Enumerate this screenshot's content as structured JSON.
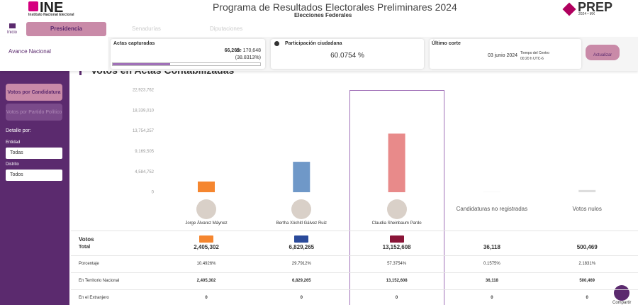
{
  "header": {
    "logo": "INE",
    "logo_sub": "Instituto Nacional Electoral",
    "title": "Programa de Resultados Electorales Preliminares 2024",
    "subtitle": "Elecciones Federales",
    "prep_logo": "PREP",
    "prep_sub": "2024 • MX"
  },
  "nav": {
    "home": "Inicio",
    "tabs": [
      "Presidencia",
      "Senadurías",
      "Diputaciones"
    ]
  },
  "summary": {
    "label": "Avance Nacional",
    "actas_title": "Actas capturadas",
    "actas_count": "66,265",
    "actas_total": "de 170,648",
    "actas_pct": "(38.8313%)",
    "actas_progress": 38.8313,
    "part_title": "Participación ciudadana",
    "part_value": "60.0754 %",
    "corte_title": "Último corte",
    "corte_date": "03 junio 2024",
    "corte_tz": "Tiempo del Centro",
    "corte_time": "00:20 h UTC-6",
    "button": "Actualizar"
  },
  "sidebar": {
    "buttons": [
      "Votos por Candidatura",
      "Votos por Partido Político"
    ],
    "detail": "Detalle por:",
    "entidad_label": "Entidad",
    "entidad_value": "Todas",
    "distrito_label": "Distrito",
    "distrito_value": "Todos"
  },
  "chart_data": {
    "type": "bar",
    "title": "Votos en Actas Contabilizadas",
    "categories": [
      "Jorge Álvarez Máynez",
      "Bertha Xóchitl Gálvez Ruiz",
      "Claudia Sheinbaum Pardo",
      "Candidaturas no registradas",
      "Votos nulos"
    ],
    "values": [
      2405302,
      6829265,
      13152608,
      36118,
      500469
    ],
    "colors": [
      "#f5862f",
      "#6f98c8",
      "#e88a8a",
      "#dddddd",
      "#dddddd"
    ],
    "ylim": [
      0,
      22923762
    ],
    "yticks": [
      0,
      {
        "value": 4584752,
        "label": "4,584,752"
      },
      {
        "value": 9169505,
        "label": "9,169,505"
      },
      {
        "value": 13754257,
        "label": "13,754,257"
      },
      {
        "value": 18339010,
        "label": "18,339,010"
      },
      {
        "value": 22923762,
        "label": "22,923,762"
      }
    ]
  },
  "table": {
    "votos_label": "Votos",
    "rows": [
      {
        "label": "Total",
        "cells": [
          "2,405,302",
          "6,829,265",
          "13,152,608",
          "36,118",
          "500,469"
        ]
      },
      {
        "label": "Porcentaje",
        "cells": [
          "10.4926%",
          "29.7912%",
          "57.3754%",
          "0.1575%",
          "2.1831%"
        ]
      },
      {
        "label": "En Territorio Nacional",
        "cells": [
          "2,405,302",
          "6,829,265",
          "13,152,608",
          "36,118",
          "500,469"
        ]
      },
      {
        "label": "En el Extranjero",
        "cells": [
          "0",
          "0",
          "0",
          "0",
          "0"
        ]
      }
    ]
  },
  "share": "Compartir"
}
